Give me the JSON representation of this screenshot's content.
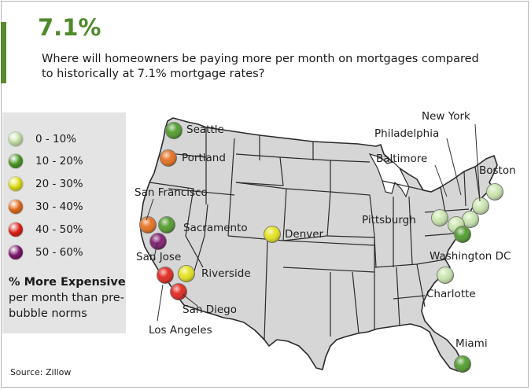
{
  "headline": "7.1%",
  "subtitle": "Where will homeowners be paying more per month on mortgages compared to historically at 7.1% mortgage rates?",
  "colors": {
    "accent": "#5a8a2c",
    "0-10": "#c9e6ad",
    "10-20": "#4f9a2a",
    "20-30": "#e4e21c",
    "30-40": "#e56f1e",
    "40-50": "#e0251c",
    "50-60": "#7e1a6e"
  },
  "legend": {
    "items": [
      {
        "label": "0 - 10%",
        "key": "0-10"
      },
      {
        "label": "10 - 20%",
        "key": "10-20"
      },
      {
        "label": "20 - 30%",
        "key": "20-30"
      },
      {
        "label": "30 - 40%",
        "key": "30-40"
      },
      {
        "label": "40 - 50%",
        "key": "40-50"
      },
      {
        "label": "50 - 60%",
        "key": "50-60"
      }
    ],
    "note_bold": "% More Expensive",
    "note_rest": "per month than pre-bubble norms"
  },
  "cities": [
    {
      "name": "Seattle",
      "range": "10-20"
    },
    {
      "name": "Portland",
      "range": "30-40"
    },
    {
      "name": "San Francisco",
      "range": "30-40"
    },
    {
      "name": "Sacramento",
      "range": "10-20"
    },
    {
      "name": "San Jose",
      "range": "50-60"
    },
    {
      "name": "Riverside",
      "range": "20-30"
    },
    {
      "name": "Los Angeles",
      "range": "40-50"
    },
    {
      "name": "San Diego",
      "range": "40-50"
    },
    {
      "name": "Denver",
      "range": "20-30"
    },
    {
      "name": "New York",
      "range": "0-10"
    },
    {
      "name": "Philadelphia",
      "range": "0-10"
    },
    {
      "name": "Baltimore",
      "range": "0-10"
    },
    {
      "name": "Boston",
      "range": "0-10"
    },
    {
      "name": "Pittsburgh",
      "range": "0-10"
    },
    {
      "name": "Washington DC",
      "range": "10-20"
    },
    {
      "name": "Charlotte",
      "range": "0-10"
    },
    {
      "name": "Miami",
      "range": "10-20"
    }
  ],
  "source": "Source: Zillow"
}
